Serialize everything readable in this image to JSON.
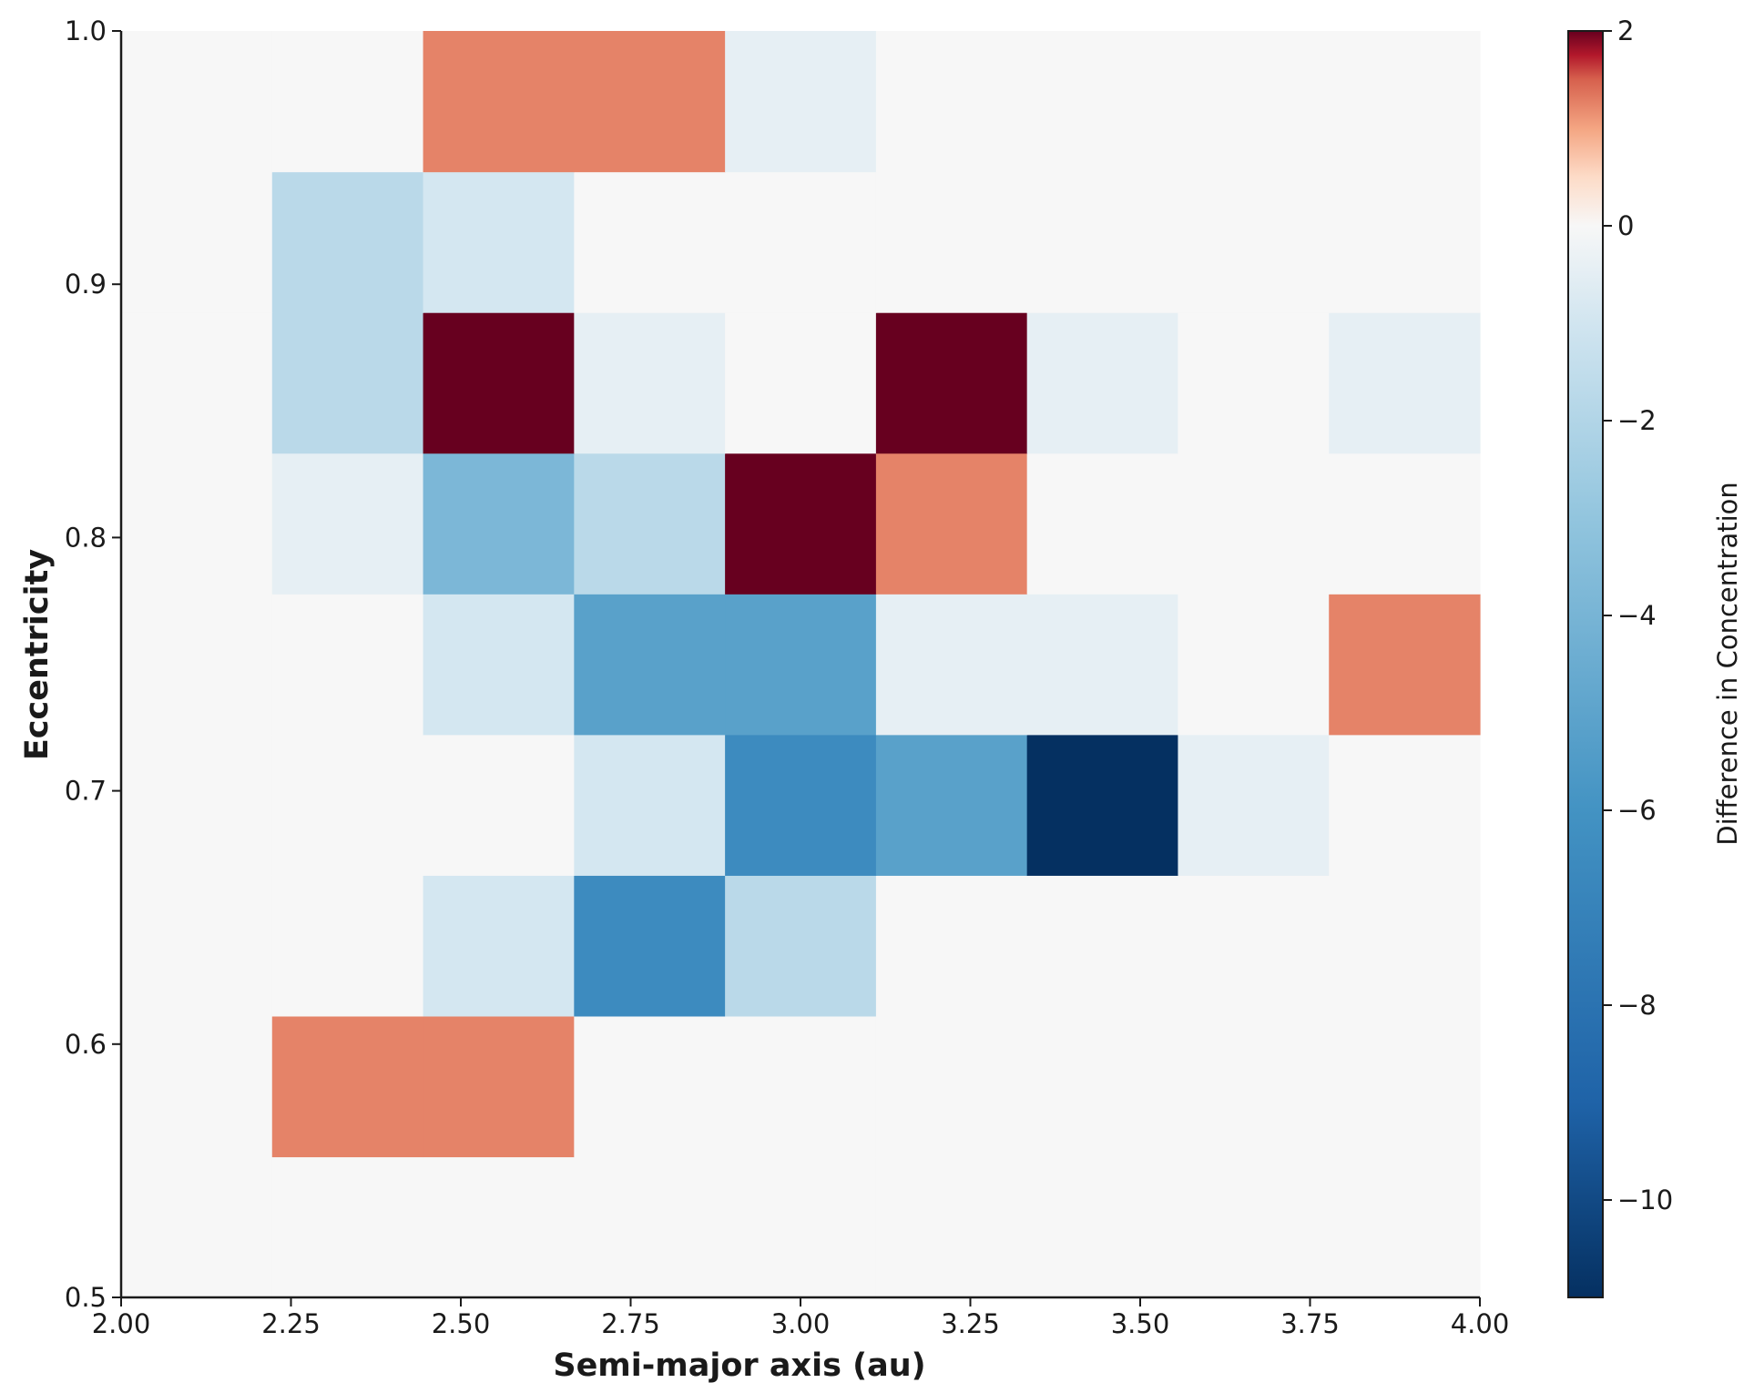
{
  "chart_data": {
    "type": "heatmap",
    "title": "",
    "xlabel": "Semi-major axis (au)",
    "ylabel": "Eccentricity",
    "xlim": [
      2.0,
      4.0
    ],
    "ylim": [
      0.5,
      1.0
    ],
    "x_bins": 9,
    "y_bins": 9,
    "x_ticks": [
      "2.00",
      "2.25",
      "2.50",
      "2.75",
      "3.00",
      "3.25",
      "3.50",
      "3.75",
      "4.00"
    ],
    "y_ticks": [
      "0.5",
      "0.6",
      "0.7",
      "0.8",
      "0.9",
      "1.0"
    ],
    "values_rows_bottom_to_top": [
      [
        0,
        0,
        0,
        0,
        0,
        0,
        0,
        0,
        0
      ],
      [
        0,
        1,
        1,
        0,
        0,
        0,
        0,
        0,
        0
      ],
      [
        0,
        0,
        -2,
        -7,
        -3,
        0,
        0,
        0,
        0
      ],
      [
        0,
        0,
        0,
        -2,
        -7,
        -6,
        -11,
        -1,
        0
      ],
      [
        0,
        0,
        -2,
        -6,
        -6,
        -1,
        -1,
        0,
        1
      ],
      [
        0,
        -1,
        -5,
        -3,
        2,
        1,
        0,
        0,
        0
      ],
      [
        0,
        -3,
        2,
        -1,
        0,
        2,
        -1,
        0,
        -1
      ],
      [
        0,
        -3,
        -2,
        0,
        0,
        0,
        0,
        0,
        0
      ],
      [
        0,
        0,
        1,
        1,
        -1,
        0,
        0,
        0,
        0
      ]
    ],
    "colorbar": {
      "label": "Difference in Concentration",
      "colormap": "RdBu_r",
      "vmin": -11,
      "vmax": 2,
      "ticks": [
        2,
        0,
        -2,
        -4,
        -6,
        -8,
        -10
      ],
      "tick_labels": [
        "2",
        "0",
        "−2",
        "−4",
        "−6",
        "−8",
        "−10"
      ]
    }
  }
}
